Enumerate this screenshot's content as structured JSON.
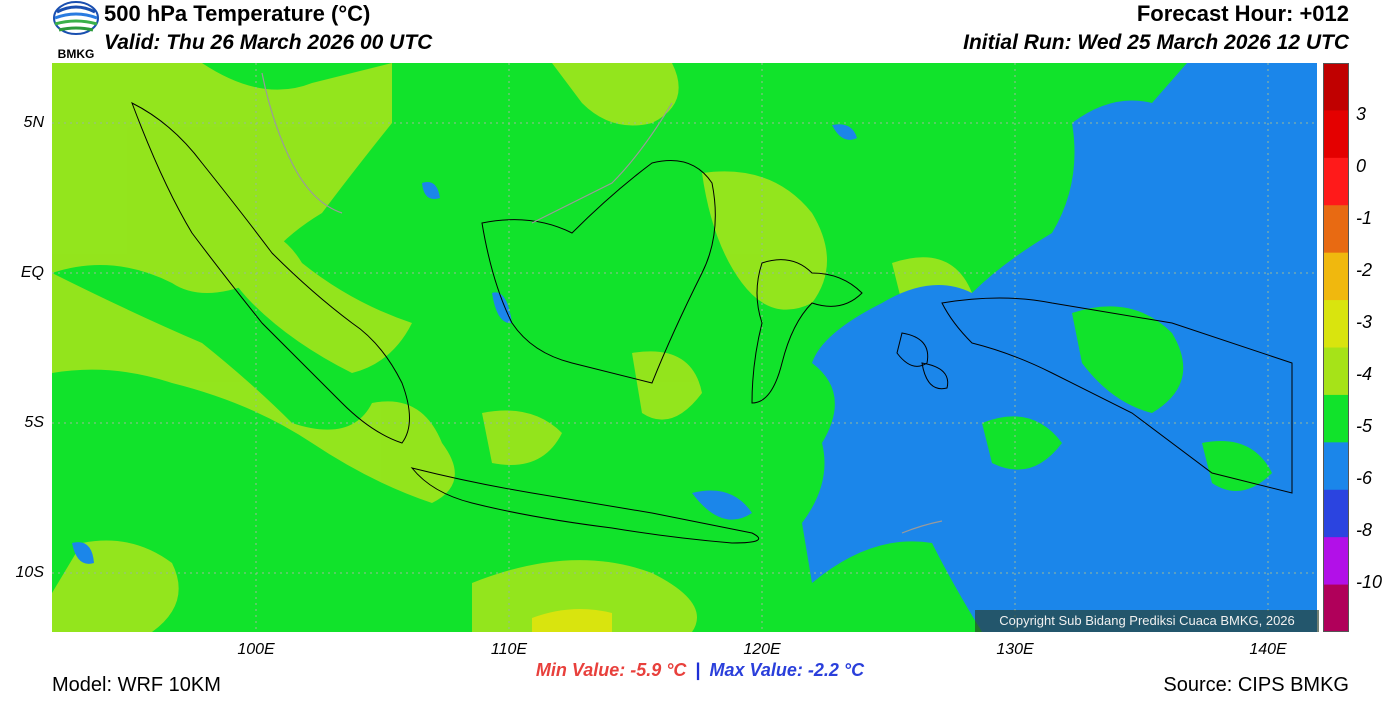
{
  "header": {
    "title": "500 hPa Temperature (°C)",
    "valid": "Valid: Thu 26 March 2026 00 UTC",
    "forecast_hour": "Forecast Hour: +012",
    "initial_run": "Initial Run: Wed 25 March 2026 12 UTC",
    "logo_text": "BMKG"
  },
  "map": {
    "lat_labels": [
      "5N",
      "EQ",
      "5S",
      "10S"
    ],
    "lon_labels": [
      "100E",
      "110E",
      "120E",
      "130E",
      "140E"
    ],
    "background_color": "#11e32b",
    "copyright": "Copyright Sub Bidang Prediksi Cuaca BMKG, 2026"
  },
  "colorbar": {
    "labels": [
      "3",
      "0",
      "-1",
      "-2",
      "-3",
      "-4",
      "-5",
      "-6",
      "-8",
      "-10"
    ],
    "colors": [
      "#c00000",
      "#e40000",
      "#ff1a1a",
      "#e86a12",
      "#f0b80e",
      "#d9e40e",
      "#a6e318",
      "#11e32b",
      "#1b86ea",
      "#2b44e0",
      "#b210e8",
      "#b0005a"
    ]
  },
  "stats": {
    "min": "Min Value: -5.9 °C",
    "separator": "|",
    "max": "Max Value: -2.2 °C"
  },
  "footer": {
    "model": "Model: WRF 10KM",
    "source": "Source: CIPS BMKG"
  }
}
